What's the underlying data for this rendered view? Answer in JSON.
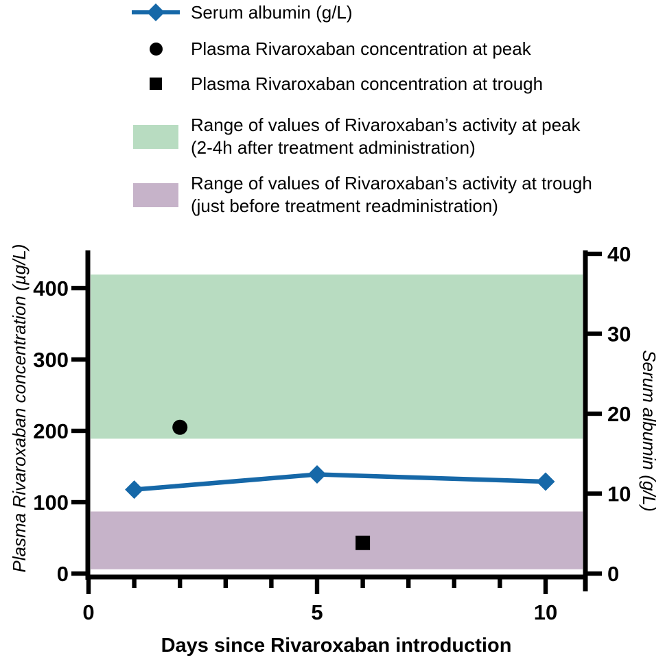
{
  "legend": {
    "items": [
      {
        "label": "Serum albumin (g/L)",
        "marker": "line-diamond",
        "color": "#1668a8"
      },
      {
        "label": "Plasma Rivaroxaban concentration at peak",
        "marker": "circle",
        "color": "#000000"
      },
      {
        "label": "Plasma Rivaroxaban concentration at trough",
        "marker": "square",
        "color": "#000000"
      },
      {
        "label": "Range of values of Rivaroxaban’s activity at peak",
        "sublabel": "(2-4h after treatment administration)",
        "marker": "band",
        "color": "#b8dcc1"
      },
      {
        "label": "Range of values of Rivaroxaban’s activity at trough",
        "sublabel": "(just before treatment readministration)",
        "marker": "band",
        "color": "#c6b3c9"
      }
    ]
  },
  "chart_data": {
    "type": "line",
    "x_axis": {
      "label": "Days since Rivaroxaban introduction",
      "range": [
        0,
        10.9
      ],
      "major_ticks": [
        0,
        5,
        10
      ],
      "minor_ticks": [
        1,
        2,
        3,
        4,
        6,
        7,
        8,
        9
      ]
    },
    "y_axis_left": {
      "label": "Plasma Rivaroxaban concentration (µg/L)",
      "ticks": [
        0,
        100,
        200,
        300,
        400
      ],
      "range_shown": [
        0,
        450
      ]
    },
    "y_axis_right": {
      "label": "Serum albumin (g/L)",
      "ticks": [
        0,
        10,
        20,
        30,
        40
      ],
      "range": [
        0,
        40
      ]
    },
    "bands": [
      {
        "name": "peak-activity-range",
        "axis": "left",
        "from": 189,
        "to": 419,
        "color": "#b8dcc1"
      },
      {
        "name": "trough-activity-range",
        "axis": "left",
        "from": 6,
        "to": 87,
        "color": "#c6b3c9"
      }
    ],
    "series": [
      {
        "name": "Serum albumin (g/L)",
        "axis": "right",
        "marker": "diamond",
        "color": "#1668a8",
        "points": [
          {
            "x": 1,
            "y": 10.5
          },
          {
            "x": 5,
            "y": 12.4
          },
          {
            "x": 10,
            "y": 11.5
          }
        ]
      }
    ],
    "scatter_points": [
      {
        "name": "Plasma Rivaroxaban concentration at peak",
        "axis": "left",
        "marker": "circle",
        "color": "#000000",
        "x": 2,
        "y": 205
      },
      {
        "name": "Plasma Rivaroxaban concentration at trough",
        "axis": "left",
        "marker": "square",
        "color": "#000000",
        "x": 6,
        "y": 43
      }
    ]
  }
}
